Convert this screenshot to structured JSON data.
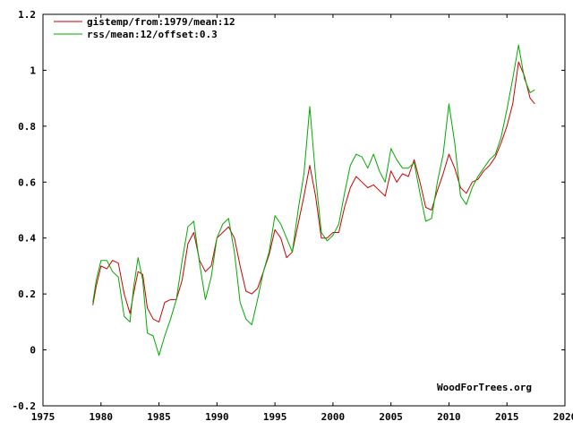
{
  "chart_data": {
    "type": "line",
    "title": "",
    "xlabel": "",
    "ylabel": "",
    "xlim": [
      1975,
      2020
    ],
    "ylim": [
      -0.2,
      1.2
    ],
    "x_ticks": [
      1975,
      1980,
      1985,
      1990,
      1995,
      2000,
      2005,
      2010,
      2015,
      2020
    ],
    "y_ticks": [
      -0.2,
      0,
      0.2,
      0.4,
      0.6,
      0.8,
      1,
      1.2
    ],
    "y_tick_labels": [
      "-0.2",
      "0",
      "0.2",
      "0.4",
      "0.6",
      "0.8",
      "1",
      "1.2"
    ],
    "grid": false,
    "legend_position": "top-left",
    "credit": "WoodForTrees.org",
    "series": [
      {
        "name": "gistemp/from:1979/mean:12",
        "color": "#cc0000",
        "x": [
          1979.3,
          1979.6,
          1980.0,
          1980.5,
          1981.0,
          1981.5,
          1982.0,
          1982.5,
          1982.8,
          1983.2,
          1983.6,
          1984.0,
          1984.5,
          1985.0,
          1985.5,
          1986.0,
          1986.5,
          1987.0,
          1987.5,
          1988.0,
          1988.5,
          1989.0,
          1989.5,
          1990.0,
          1990.5,
          1991.0,
          1991.5,
          1992.0,
          1992.5,
          1993.0,
          1993.5,
          1994.0,
          1994.5,
          1995.0,
          1995.5,
          1996.0,
          1996.5,
          1997.0,
          1997.5,
          1998.0,
          1998.5,
          1999.0,
          1999.5,
          2000.0,
          2000.5,
          2001.0,
          2001.5,
          2002.0,
          2002.5,
          2003.0,
          2003.5,
          2004.0,
          2004.5,
          2005.0,
          2005.5,
          2006.0,
          2006.5,
          2007.0,
          2007.5,
          2008.0,
          2008.5,
          2009.0,
          2009.5,
          2010.0,
          2010.5,
          2011.0,
          2011.5,
          2012.0,
          2012.5,
          2013.0,
          2013.5,
          2014.0,
          2014.5,
          2015.0,
          2015.5,
          2016.0,
          2016.5,
          2017.0,
          2017.4
        ],
        "y": [
          0.16,
          0.23,
          0.3,
          0.29,
          0.32,
          0.31,
          0.2,
          0.13,
          0.2,
          0.28,
          0.27,
          0.15,
          0.11,
          0.1,
          0.17,
          0.18,
          0.18,
          0.25,
          0.38,
          0.42,
          0.32,
          0.28,
          0.3,
          0.4,
          0.42,
          0.44,
          0.4,
          0.3,
          0.21,
          0.2,
          0.22,
          0.28,
          0.34,
          0.43,
          0.4,
          0.33,
          0.35,
          0.45,
          0.55,
          0.66,
          0.55,
          0.4,
          0.4,
          0.42,
          0.42,
          0.51,
          0.58,
          0.62,
          0.6,
          0.58,
          0.59,
          0.57,
          0.55,
          0.64,
          0.6,
          0.63,
          0.62,
          0.68,
          0.6,
          0.51,
          0.5,
          0.57,
          0.63,
          0.7,
          0.65,
          0.58,
          0.56,
          0.6,
          0.61,
          0.64,
          0.66,
          0.69,
          0.74,
          0.8,
          0.88,
          1.03,
          0.98,
          0.9,
          0.88
        ]
      },
      {
        "name": "rss/mean:12/offset:0.3",
        "color": "#00aa00",
        "x": [
          1979.3,
          1979.6,
          1980.0,
          1980.5,
          1981.0,
          1981.5,
          1982.0,
          1982.5,
          1982.8,
          1983.2,
          1983.6,
          1984.0,
          1984.5,
          1985.0,
          1985.5,
          1986.0,
          1986.5,
          1987.0,
          1987.5,
          1988.0,
          1988.5,
          1989.0,
          1989.5,
          1990.0,
          1990.5,
          1991.0,
          1991.5,
          1992.0,
          1992.5,
          1993.0,
          1993.5,
          1994.0,
          1994.5,
          1995.0,
          1995.5,
          1996.0,
          1996.5,
          1997.0,
          1997.5,
          1998.0,
          1998.5,
          1999.0,
          1999.5,
          2000.0,
          2000.5,
          2001.0,
          2001.5,
          2002.0,
          2002.5,
          2003.0,
          2003.5,
          2004.0,
          2004.5,
          2005.0,
          2005.5,
          2006.0,
          2006.5,
          2007.0,
          2007.5,
          2008.0,
          2008.5,
          2009.0,
          2009.5,
          2010.0,
          2010.5,
          2011.0,
          2011.5,
          2012.0,
          2012.5,
          2013.0,
          2013.5,
          2014.0,
          2014.5,
          2015.0,
          2015.5,
          2016.0,
          2016.5,
          2017.0,
          2017.4
        ],
        "y": [
          0.17,
          0.25,
          0.32,
          0.32,
          0.28,
          0.26,
          0.12,
          0.1,
          0.22,
          0.33,
          0.25,
          0.06,
          0.05,
          -0.02,
          0.05,
          0.11,
          0.18,
          0.32,
          0.44,
          0.46,
          0.31,
          0.18,
          0.26,
          0.4,
          0.45,
          0.47,
          0.35,
          0.17,
          0.11,
          0.09,
          0.18,
          0.28,
          0.35,
          0.48,
          0.45,
          0.4,
          0.35,
          0.5,
          0.63,
          0.87,
          0.62,
          0.42,
          0.39,
          0.41,
          0.45,
          0.56,
          0.66,
          0.7,
          0.69,
          0.65,
          0.7,
          0.64,
          0.6,
          0.72,
          0.68,
          0.65,
          0.65,
          0.67,
          0.56,
          0.46,
          0.47,
          0.6,
          0.7,
          0.88,
          0.74,
          0.55,
          0.52,
          0.58,
          0.62,
          0.65,
          0.68,
          0.7,
          0.76,
          0.86,
          0.97,
          1.09,
          0.97,
          0.92,
          0.93
        ]
      }
    ]
  }
}
